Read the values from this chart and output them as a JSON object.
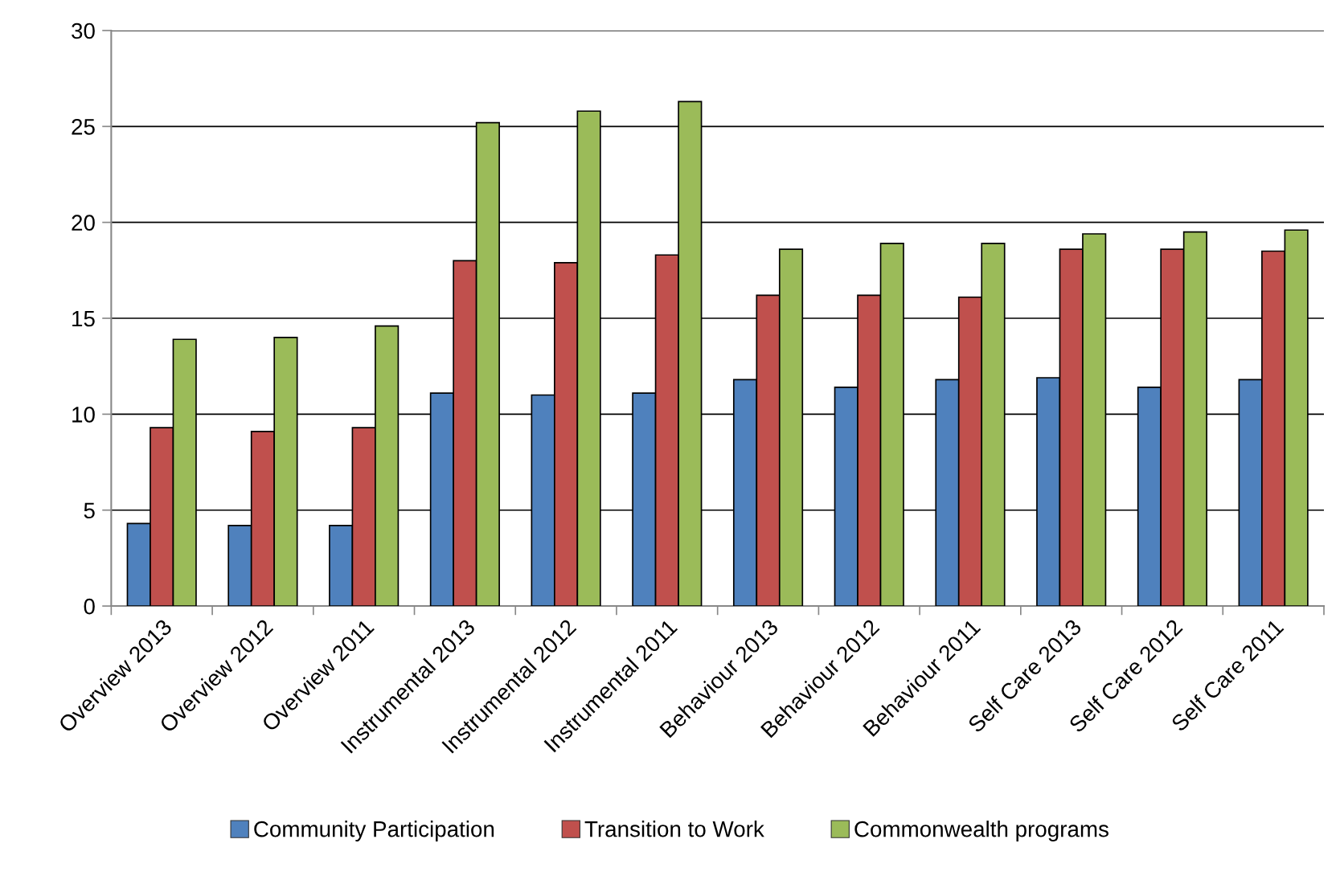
{
  "chart_data": {
    "type": "bar",
    "categories": [
      "Overview 2013",
      "Overview 2012",
      "Overview 2011",
      "Instrumental 2013",
      "Instrumental 2012",
      "Instrumental 2011",
      "Behaviour 2013",
      "Behaviour 2012",
      "Behaviour 2011",
      "Self Care 2013",
      "Self Care 2012",
      "Self Care 2011"
    ],
    "series": [
      {
        "name": "Community Participation",
        "color": "#4f81bd",
        "values": [
          4.3,
          4.2,
          4.2,
          11.1,
          11.0,
          11.1,
          11.8,
          11.4,
          11.8,
          11.9,
          11.4,
          11.8
        ]
      },
      {
        "name": "Transition to Work",
        "color": "#c0504d",
        "values": [
          9.3,
          9.1,
          9.3,
          18.0,
          17.9,
          18.3,
          16.2,
          16.2,
          16.1,
          18.6,
          18.6,
          18.5
        ]
      },
      {
        "name": "Commonwealth programs",
        "color": "#9bbb59",
        "values": [
          13.9,
          14.0,
          14.6,
          25.2,
          25.8,
          26.3,
          18.6,
          18.9,
          18.9,
          19.4,
          19.5,
          19.6
        ]
      }
    ],
    "ylim": [
      0,
      30
    ],
    "yticks": [
      0,
      5,
      10,
      15,
      20,
      25,
      30
    ],
    "grid": "y",
    "legend": "bottom"
  }
}
